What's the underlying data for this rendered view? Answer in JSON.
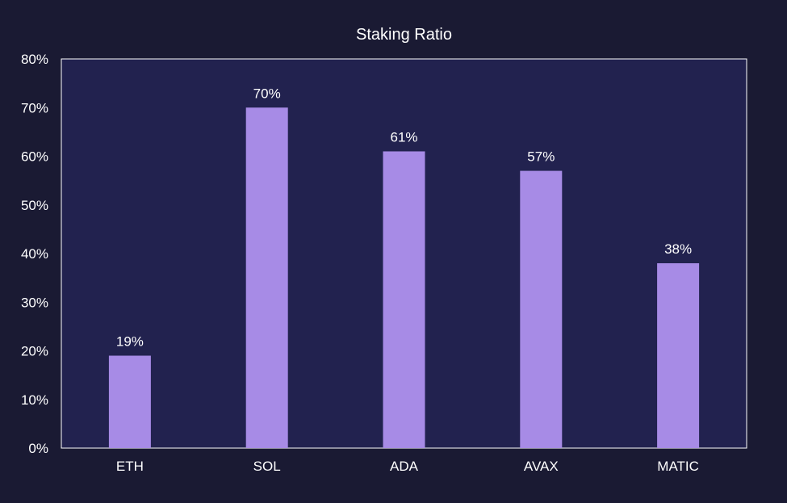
{
  "chart_data": {
    "type": "bar",
    "title": "Staking Ratio",
    "categories": [
      "ETH",
      "SOL",
      "ADA",
      "AVAX",
      "MATIC"
    ],
    "values": [
      19,
      70,
      61,
      57,
      38
    ],
    "value_labels": [
      "19%",
      "70%",
      "61%",
      "57%",
      "38%"
    ],
    "yticks": [
      "0%",
      "10%",
      "20%",
      "30%",
      "40%",
      "50%",
      "60%",
      "70%",
      "80%"
    ],
    "ylim": [
      0,
      80
    ],
    "xlabel": "",
    "ylabel": "",
    "grid": false,
    "colors": {
      "page_background": "#1a1a33",
      "plot_background": "#22224f",
      "bar": "#a78be6",
      "axis": "#ffffff",
      "text": "#ffffff"
    }
  }
}
